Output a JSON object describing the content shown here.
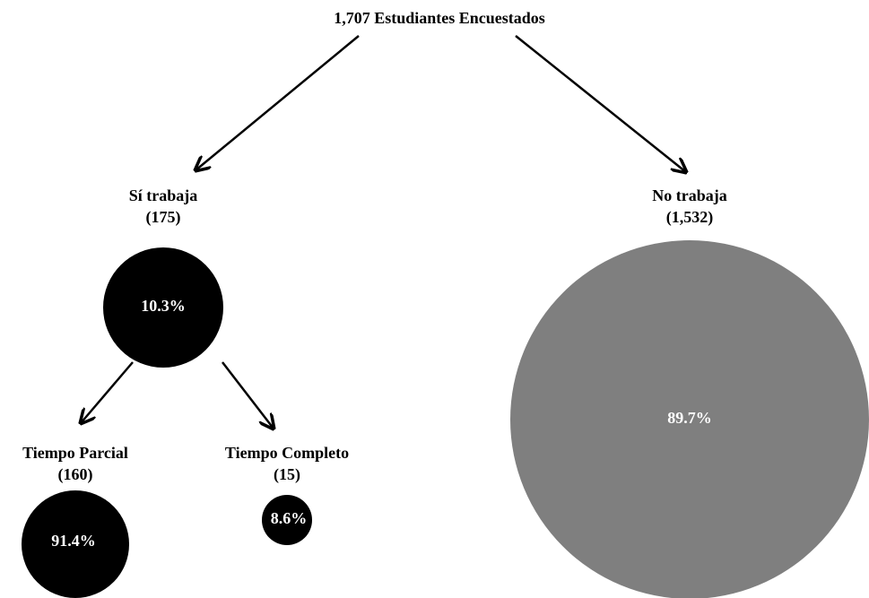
{
  "title": "1,707 Estudiantes Encuestados",
  "nodes": [
    {
      "label": "Sí trabaja",
      "count": "(175)",
      "percent": "10.3%"
    },
    {
      "label": "No trabaja",
      "count": "(1,532)",
      "percent": "89.7%"
    },
    {
      "label": "Tiempo Parcial",
      "count": "(160)",
      "percent": "91.4%"
    },
    {
      "label": "Tiempo Completo",
      "count": "(15)",
      "percent": "8.6%"
    }
  ]
}
